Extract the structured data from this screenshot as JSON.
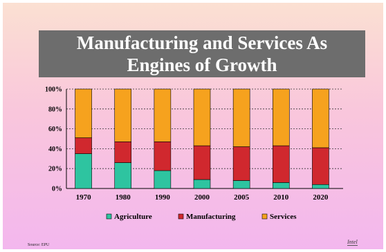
{
  "slide": {
    "title_line1": "Manufacturing and Services As",
    "title_line2": "Engines of Growth",
    "source": "Source: EPU",
    "logo_text": "Intel"
  },
  "chart_data": {
    "type": "bar",
    "stacked": true,
    "categories": [
      "1970",
      "1980",
      "1990",
      "2000",
      "2005",
      "2010",
      "2020"
    ],
    "series": [
      {
        "name": "Agriculture",
        "color": "#2ec4a0",
        "values": [
          35,
          26,
          18,
          9,
          8,
          6,
          4
        ]
      },
      {
        "name": "Manufacturing",
        "color": "#d0282e",
        "values": [
          16,
          21,
          29,
          34,
          34,
          37,
          37
        ]
      },
      {
        "name": "Services",
        "color": "#f6a21e",
        "values": [
          49,
          53,
          53,
          57,
          58,
          57,
          59
        ]
      }
    ],
    "yticks": [
      "0%",
      "20%",
      "40%",
      "60%",
      "80%",
      "100%"
    ],
    "ylim": [
      0,
      100
    ],
    "grid": true,
    "legend_position": "bottom"
  }
}
